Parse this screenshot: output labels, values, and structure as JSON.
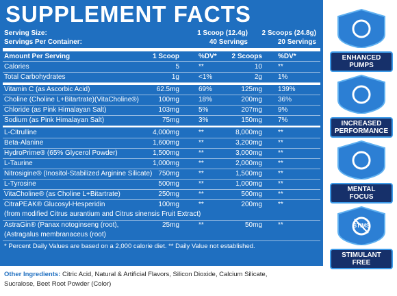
{
  "header": {
    "title": "SUPPLEMENT FACTS"
  },
  "serving": [
    [
      "Serving Size:",
      "1 Scoop (12.4g)",
      "2 Scoops (24.8g)"
    ],
    [
      "Servings Per Container:",
      "40 Servings",
      "20 Servings"
    ]
  ],
  "table": {
    "head": [
      "Amount Per Serving",
      "1 Scoop",
      "%DV*",
      "2 Scoops",
      "%DV*"
    ],
    "sections": [
      [
        {
          "name": "Calories",
          "values": [
            "5",
            "**",
            "10",
            "**"
          ]
        },
        {
          "name": "Total Carbohydrates",
          "values": [
            "1g",
            "<1%",
            "2g",
            "1%"
          ]
        }
      ],
      [
        {
          "name": "Vitamin C (as Ascorbic Acid)",
          "values": [
            "62.5mg",
            "69%",
            "125mg",
            "139%"
          ]
        },
        {
          "name": "Choline (Choline L+Bitartrate)(VitaCholine®)",
          "values": [
            "100mg",
            "18%",
            "200mg",
            "36%"
          ]
        },
        {
          "name": "Chloride (as Pink Himalayan Salt)",
          "values": [
            "103mg",
            "5%",
            "207mg",
            "9%"
          ]
        },
        {
          "name": "Sodium (as Pink Himalayan Salt)",
          "values": [
            "75mg",
            "3%",
            "150mg",
            "7%"
          ]
        }
      ],
      [
        {
          "name": "L-Citrulline",
          "values": [
            "4,000mg",
            "**",
            "8,000mg",
            "**"
          ]
        },
        {
          "name": "Beta-Alanine",
          "values": [
            "1,600mg",
            "**",
            "3,200mg",
            "**"
          ]
        },
        {
          "name": "HydroPrime® (65% Glycerol Powder)",
          "values": [
            "1,500mg",
            "**",
            "3,000mg",
            "**"
          ]
        },
        {
          "name": "L-Taurine",
          "values": [
            "1,000mg",
            "**",
            "2,000mg",
            "**"
          ]
        },
        {
          "name": "Nitrosigine® (Inositol-Stabilized Arginine Silicate)",
          "values": [
            "750mg",
            "**",
            "1,500mg",
            "**"
          ]
        },
        {
          "name": "L-Tyrosine",
          "values": [
            "500mg",
            "**",
            "1,000mg",
            "**"
          ]
        },
        {
          "name": "VitaCholine® (as Choline L+Bitartrate)",
          "values": [
            "250mg",
            "**",
            "500mg",
            "**"
          ]
        },
        {
          "name": "CitraPEAK® Glucosyl-Hesperidin",
          "note": "(from modified Citrus aurantium and Citrus sinensis Fruit Extract)",
          "values": [
            "100mg",
            "**",
            "200mg",
            "**"
          ]
        },
        {
          "name": "AstraGin® (Panax notoginseng (root),",
          "note": "(Astragalus membranaceus (root)",
          "values": [
            "25mg",
            "**",
            "50mg",
            "**"
          ]
        }
      ]
    ],
    "footnote": "* Percent Daily Values are based on a 2,000 calorie diet. ** Daily Value not established."
  },
  "other_ingredients": {
    "label": "Other Ingredients:",
    "text": "Citric Acid, Natural & Artificial Flavors, Silicon Dioxide, Calcium Silicate, Sucralose, Beet Root Powder (Color)"
  },
  "badges": [
    {
      "lines": [
        "ENHANCED",
        "PUMPS"
      ]
    },
    {
      "lines": [
        "INCREASED",
        "PERFORMANCE"
      ]
    },
    {
      "lines": [
        "MENTAL",
        "FOCUS"
      ]
    },
    {
      "icon_text": "STIMS",
      "lines": [
        "STIMULANT",
        "FREE"
      ]
    }
  ]
}
